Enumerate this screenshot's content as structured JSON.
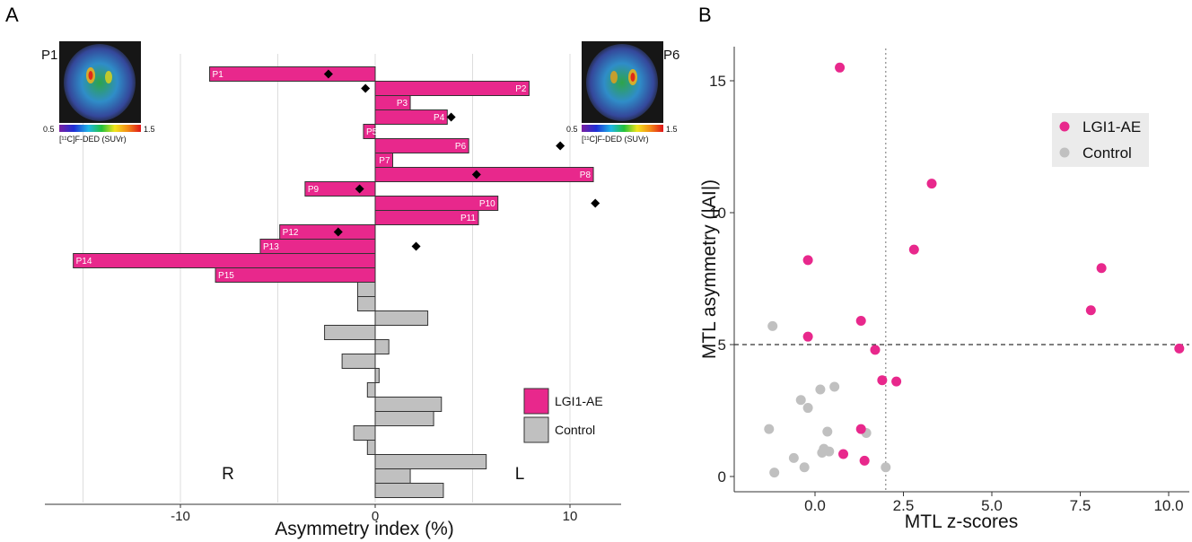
{
  "panels": {
    "a_label": "A",
    "b_label": "B"
  },
  "colors": {
    "lgi1": "#e8288c",
    "control": "#c0c0c0",
    "bar_stroke": "#333333"
  },
  "chart_data": [
    {
      "type": "bar",
      "orientation": "horizontal",
      "xlabel": "Asymmetry index (%)",
      "xticks": [
        -10,
        0,
        10
      ],
      "xlim": [
        -16,
        12.5
      ],
      "grid": "vertical",
      "side_labels": {
        "left": "R",
        "right": "L"
      },
      "legend": {
        "placement": "bottom-right",
        "entries": [
          "LGI1-AE",
          "Control"
        ]
      },
      "series": [
        {
          "name": "LGI1-AE",
          "labels": [
            "P1",
            "P2",
            "P3",
            "P4",
            "P5",
            "P6",
            "P7",
            "P8",
            "P9",
            "P10",
            "P11",
            "P12",
            "P13",
            "P14",
            "P15"
          ],
          "values": [
            -8.5,
            7.9,
            1.8,
            3.7,
            -0.6,
            4.8,
            0.9,
            11.2,
            -3.6,
            6.3,
            5.3,
            -4.9,
            -5.9,
            -15.5,
            -8.2
          ],
          "markers": [
            -2.4,
            -0.5,
            null,
            3.9,
            null,
            9.5,
            null,
            5.2,
            -0.8,
            11.3,
            null,
            -1.9,
            2.1,
            null,
            null
          ]
        },
        {
          "name": "Control",
          "values": [
            -0.9,
            -0.9,
            2.7,
            -2.6,
            0.7,
            -1.7,
            0.2,
            -0.4,
            3.4,
            3.0,
            -1.1,
            -0.4,
            5.7,
            1.8,
            3.5
          ]
        }
      ],
      "insets": [
        {
          "label": "P1",
          "colorbar_min": "0.5",
          "colorbar_max": "1.5",
          "colorbar_title": "[¹¹C]F-DED (SUVr)"
        },
        {
          "label": "P6",
          "colorbar_min": "0.5",
          "colorbar_max": "1.5",
          "colorbar_title": "[¹¹C]F-DED (SUVr)"
        }
      ]
    },
    {
      "type": "scatter",
      "xlabel": "MTL z-scores",
      "ylabel": "MTL asymmetry (|AI|)",
      "xticks": [
        "0.0",
        "2.5",
        "5.0",
        "7.5",
        "10.0"
      ],
      "yticks": [
        "0",
        "5",
        "10",
        "15"
      ],
      "xlim": [
        -1.9,
        10.8
      ],
      "ylim": [
        -0.4,
        16.2
      ],
      "reference_lines": {
        "vertical_x": 2.0,
        "horizontal_y": 5.0
      },
      "legend": {
        "placement": "top-right",
        "entries": [
          "LGI1-AE",
          "Control"
        ]
      },
      "series": [
        {
          "name": "LGI1-AE",
          "points": [
            [
              0.7,
              15.5
            ],
            [
              3.3,
              11.1
            ],
            [
              2.8,
              8.6
            ],
            [
              -0.2,
              8.2
            ],
            [
              8.1,
              7.9
            ],
            [
              7.8,
              6.3
            ],
            [
              1.3,
              5.9
            ],
            [
              -0.2,
              5.3
            ],
            [
              1.7,
              4.8
            ],
            [
              10.3,
              4.85
            ],
            [
              1.9,
              3.65
            ],
            [
              2.3,
              3.6
            ],
            [
              1.3,
              1.8
            ],
            [
              0.8,
              0.85
            ],
            [
              1.4,
              0.6
            ]
          ]
        },
        {
          "name": "Control",
          "points": [
            [
              -1.2,
              5.7
            ],
            [
              0.55,
              3.4
            ],
            [
              0.15,
              3.3
            ],
            [
              -0.4,
              2.9
            ],
            [
              -0.2,
              2.6
            ],
            [
              0.35,
              1.7
            ],
            [
              1.45,
              1.65
            ],
            [
              -1.3,
              1.8
            ],
            [
              0.25,
              1.05
            ],
            [
              0.4,
              0.95
            ],
            [
              0.2,
              0.9
            ],
            [
              -0.6,
              0.7
            ],
            [
              -0.3,
              0.35
            ],
            [
              -1.15,
              0.15
            ],
            [
              2.0,
              0.35
            ]
          ]
        }
      ]
    }
  ]
}
